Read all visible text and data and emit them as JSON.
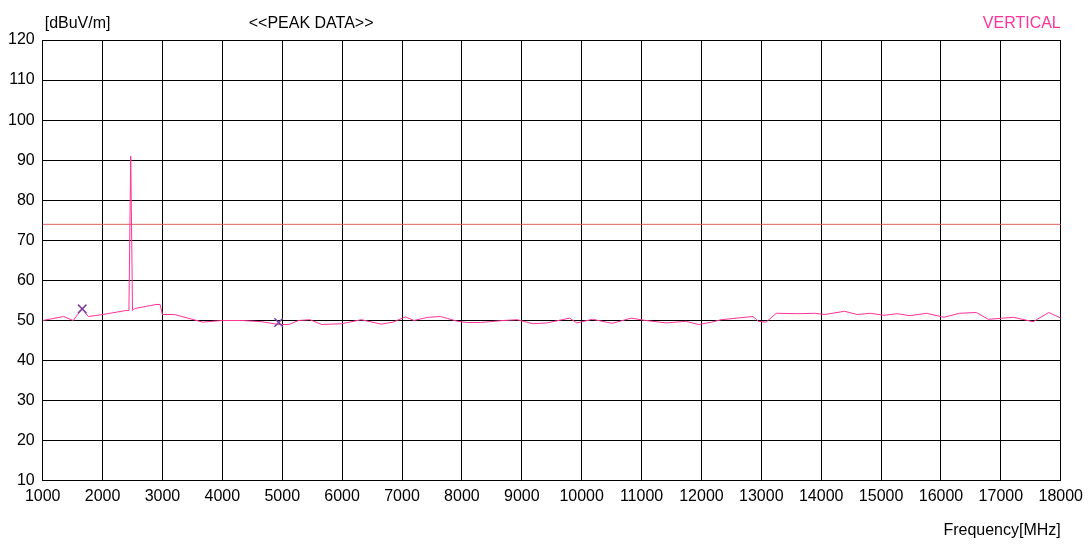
{
  "chart_data": {
    "type": "line",
    "title": "<<PEAK DATA>>",
    "ylabel": "[dBuV/m]",
    "xlabel": "Frequency[MHz]",
    "xlim": [
      1000,
      18000
    ],
    "xticks": [
      1000,
      2000,
      3000,
      4000,
      5000,
      6000,
      7000,
      8000,
      9000,
      10000,
      11000,
      12000,
      13000,
      14000,
      15000,
      16000,
      17000,
      18000
    ],
    "ylim": [
      10,
      120
    ],
    "yticks": [
      10,
      20,
      30,
      40,
      50,
      60,
      70,
      80,
      90,
      100,
      110,
      120
    ],
    "grid": true,
    "legend": "top right",
    "marker": "none",
    "line_style": "solid",
    "ref_lines": [
      {
        "axis": "y",
        "value": 74,
        "color": "#e06060"
      }
    ],
    "series": [
      {
        "name": "VERTICAL",
        "color": "#ff3399",
        "type": "line",
        "x": [
          1000,
          1350,
          1510,
          1660,
          1760,
          2010,
          2390,
          2440,
          2470,
          2500,
          2540,
          2720,
          2890,
          2960,
          3000,
          3200,
          3670,
          4000,
          4330,
          4660,
          4940,
          5110,
          5270,
          5460,
          5660,
          5990,
          6320,
          6650,
          6850,
          7060,
          7200,
          7430,
          7640,
          7760,
          7930,
          8090,
          8310,
          8690,
          8920,
          9190,
          9420,
          9800,
          9920,
          10180,
          10510,
          10830,
          11070,
          11410,
          11740,
          11950,
          12170,
          12330,
          12860,
          12950,
          13080,
          13250,
          13610,
          13890,
          14060,
          14390,
          14600,
          14820,
          15050,
          15270,
          15480,
          15760,
          16050,
          16310,
          16590,
          16790,
          17210,
          17540,
          17800,
          18000
        ],
        "values": [
          50,
          51,
          50,
          53,
          51,
          51.5,
          52.5,
          52.5,
          91,
          52.5,
          53,
          53.5,
          54,
          54,
          51.5,
          51.5,
          49.6,
          50,
          50,
          49.7,
          49,
          49,
          50,
          50.2,
          49,
          49.2,
          50.2,
          49.1,
          49.6,
          50.9,
          50,
          50.8,
          51,
          50.5,
          49.8,
          49.5,
          49.5,
          50,
          50.2,
          49.2,
          49.4,
          50.6,
          49.4,
          50.3,
          49.3,
          50.6,
          50,
          49.4,
          49.8,
          49,
          49.6,
          50.2,
          51,
          49.8,
          49.6,
          51.8,
          51.7,
          51.8,
          51.5,
          52.3,
          51.5,
          51.8,
          51.3,
          51.7,
          51.2,
          51.8,
          50.8,
          51.8,
          52,
          50.3,
          50.8,
          49.7,
          52,
          50.6
        ]
      },
      {
        "type": "scatter",
        "color": "#8040a0",
        "marker": "cross",
        "x": [
          1660,
          4940
        ],
        "values": [
          52.9,
          49.5
        ]
      }
    ]
  }
}
